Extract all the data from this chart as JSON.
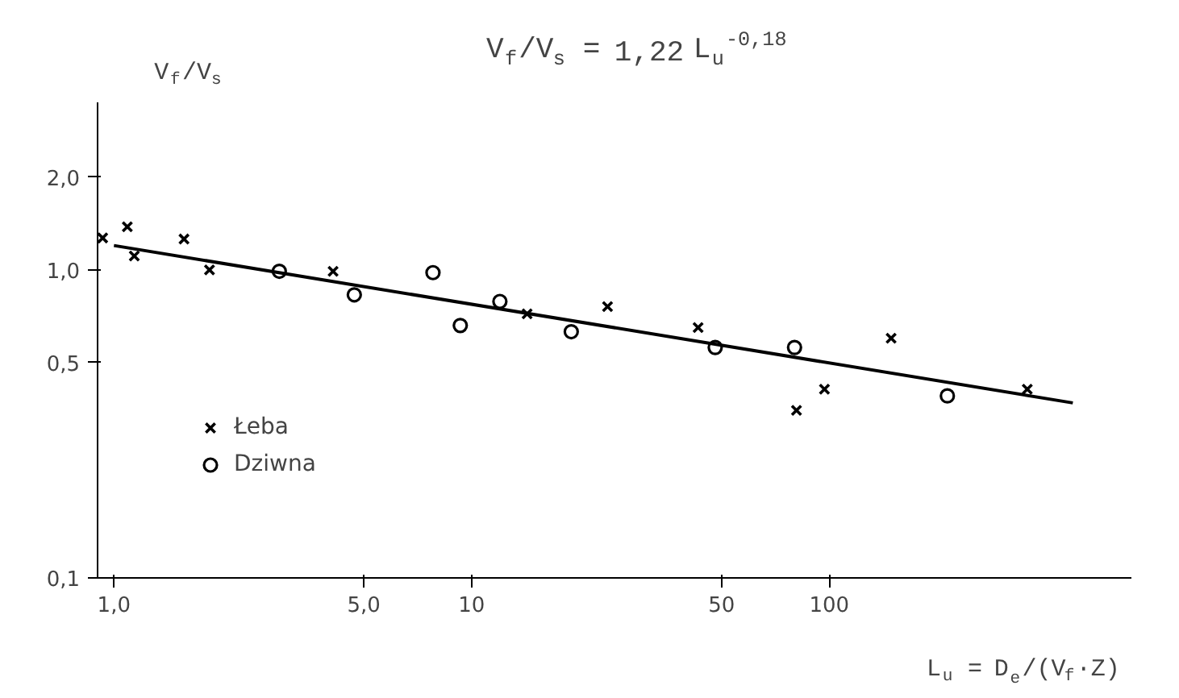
{
  "chart_data": {
    "type": "scatter",
    "title": "V$_{f}$/V$_{s}$ = 1,22 L$_{u}$$^{-0,18}$",
    "xlabel": "L$_{u}$ = D$_{e}$/(V$_{f}$·Z)",
    "ylabel": "V$_{f}$/V$_{s}$",
    "log": "xy",
    "grid": false,
    "legend": "bottom left",
    "xlim": [
      0.9,
      700
    ],
    "ylim": [
      0.1,
      3.5
    ],
    "xticks": [
      {
        "value": 1,
        "label": "1,0"
      },
      {
        "value": 5,
        "label": "5,0"
      },
      10,
      50,
      100
    ],
    "yticks": [
      {
        "value": 0.1,
        "label": "0,1"
      },
      {
        "value": 0.5,
        "label": "0,5"
      },
      {
        "value": 1,
        "label": "1,0"
      },
      {
        "value": 2,
        "label": "2,0"
      }
    ],
    "series": [
      {
        "name": "Łeba",
        "color": "#000000",
        "marker": "cross",
        "x": [
          0.93,
          1.09,
          1.14,
          1.57,
          1.85,
          4.1,
          14.3,
          24,
          43,
          81,
          97,
          149,
          358
        ],
        "values": [
          1.27,
          1.38,
          1.11,
          1.26,
          1.0,
          0.99,
          0.72,
          0.76,
          0.65,
          0.35,
          0.41,
          0.6,
          0.41
        ]
      },
      {
        "name": "Dziwna",
        "color": "#000000",
        "marker": "circle",
        "x": [
          2.9,
          4.7,
          7.8,
          9.3,
          12,
          19,
          48,
          80,
          214
        ],
        "values": [
          0.99,
          0.83,
          0.98,
          0.66,
          0.79,
          0.63,
          0.56,
          0.56,
          0.39
        ]
      },
      {
        "type": "line",
        "color": "#000000",
        "line_style": "solid",
        "x": [
          1.0,
          480
        ],
        "values": [
          1.2,
          0.37
        ]
      }
    ]
  }
}
